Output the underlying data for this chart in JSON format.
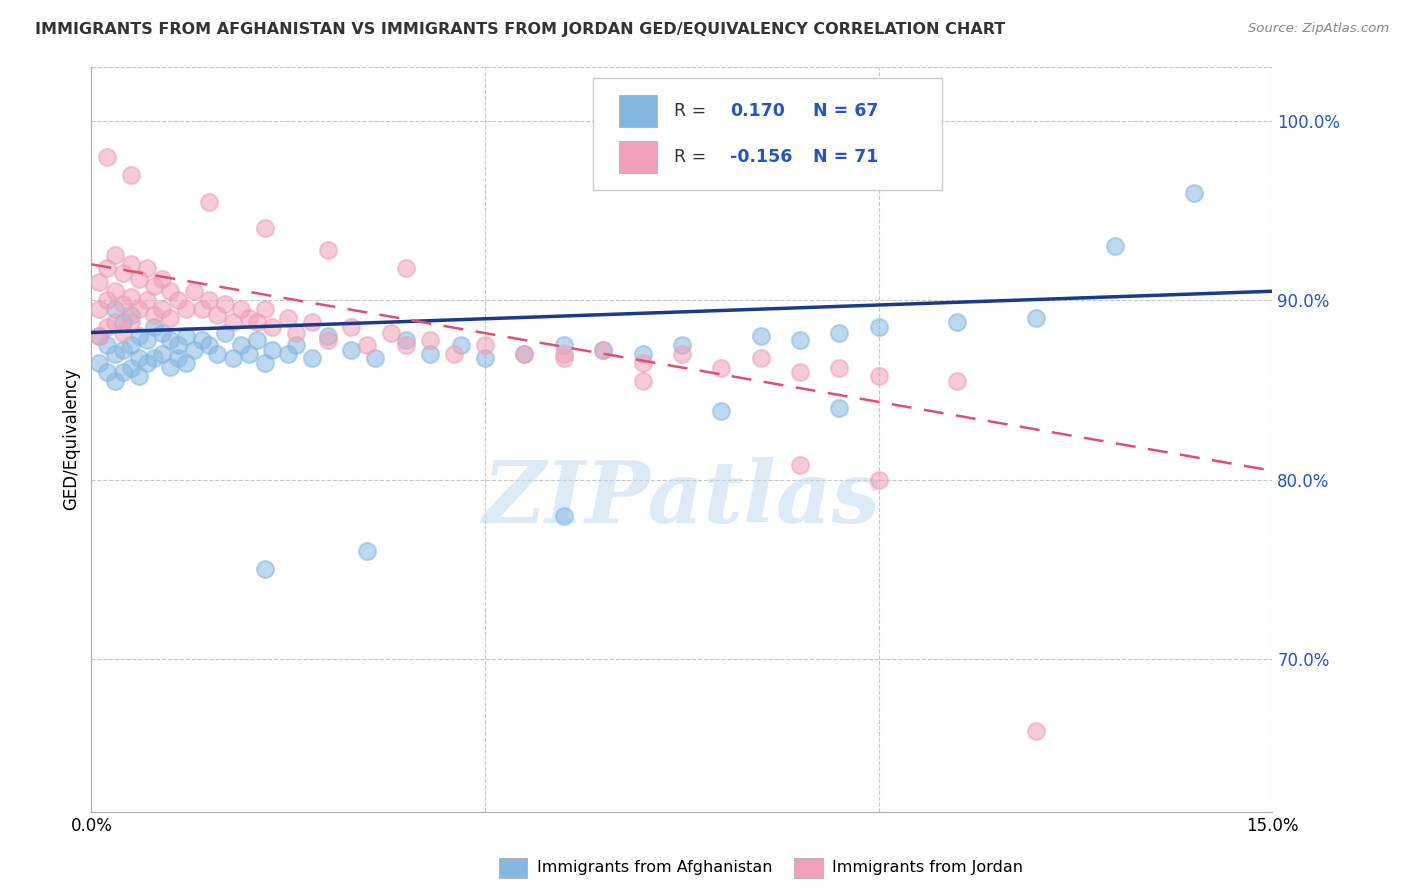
{
  "title": "IMMIGRANTS FROM AFGHANISTAN VS IMMIGRANTS FROM JORDAN GED/EQUIVALENCY CORRELATION CHART",
  "source_text": "Source: ZipAtlas.com",
  "ylabel": "GED/Equivalency",
  "xlim": [
    0.0,
    0.15
  ],
  "ylim": [
    0.615,
    1.03
  ],
  "x_ticks": [
    0.0,
    0.05,
    0.1,
    0.15
  ],
  "x_tick_labels": [
    "0.0%",
    "",
    "",
    "15.0%"
  ],
  "y_ticks": [
    0.7,
    0.8,
    0.9,
    1.0
  ],
  "y_tick_labels": [
    "70.0%",
    "80.0%",
    "90.0%",
    "100.0%"
  ],
  "r_afghanistan": 0.17,
  "n_afghanistan": 67,
  "r_jordan": -0.156,
  "n_jordan": 71,
  "color_afghanistan": "#85b8e0",
  "color_jordan": "#f0a0b8",
  "legend_label_afghanistan": "Immigrants from Afghanistan",
  "legend_label_jordan": "Immigrants from Jordan",
  "watermark": "ZIPatlas",
  "background_color": "#ffffff",
  "grid_color": "#c8c8c8",
  "afg_x": [
    0.001,
    0.001,
    0.002,
    0.002,
    0.003,
    0.003,
    0.003,
    0.004,
    0.004,
    0.004,
    0.005,
    0.005,
    0.005,
    0.006,
    0.006,
    0.006,
    0.007,
    0.007,
    0.008,
    0.008,
    0.009,
    0.009,
    0.01,
    0.01,
    0.011,
    0.011,
    0.012,
    0.012,
    0.013,
    0.014,
    0.015,
    0.016,
    0.017,
    0.018,
    0.019,
    0.02,
    0.021,
    0.022,
    0.023,
    0.025,
    0.026,
    0.028,
    0.03,
    0.033,
    0.036,
    0.04,
    0.043,
    0.047,
    0.05,
    0.055,
    0.06,
    0.065,
    0.07,
    0.075,
    0.085,
    0.09,
    0.095,
    0.1,
    0.11,
    0.12,
    0.022,
    0.035,
    0.06,
    0.08,
    0.095,
    0.13,
    0.14
  ],
  "afg_y": [
    0.88,
    0.865,
    0.875,
    0.86,
    0.895,
    0.87,
    0.855,
    0.888,
    0.872,
    0.86,
    0.892,
    0.875,
    0.862,
    0.88,
    0.868,
    0.858,
    0.878,
    0.865,
    0.885,
    0.868,
    0.882,
    0.87,
    0.878,
    0.863,
    0.875,
    0.868,
    0.88,
    0.865,
    0.872,
    0.878,
    0.875,
    0.87,
    0.882,
    0.868,
    0.875,
    0.87,
    0.878,
    0.865,
    0.872,
    0.87,
    0.875,
    0.868,
    0.88,
    0.872,
    0.868,
    0.878,
    0.87,
    0.875,
    0.868,
    0.87,
    0.875,
    0.872,
    0.87,
    0.875,
    0.88,
    0.878,
    0.882,
    0.885,
    0.888,
    0.89,
    0.75,
    0.76,
    0.78,
    0.838,
    0.84,
    0.93,
    0.96
  ],
  "jor_x": [
    0.001,
    0.001,
    0.001,
    0.002,
    0.002,
    0.002,
    0.003,
    0.003,
    0.003,
    0.004,
    0.004,
    0.004,
    0.005,
    0.005,
    0.005,
    0.006,
    0.006,
    0.007,
    0.007,
    0.008,
    0.008,
    0.009,
    0.009,
    0.01,
    0.01,
    0.011,
    0.012,
    0.013,
    0.014,
    0.015,
    0.016,
    0.017,
    0.018,
    0.019,
    0.02,
    0.021,
    0.022,
    0.023,
    0.025,
    0.026,
    0.028,
    0.03,
    0.033,
    0.035,
    0.038,
    0.04,
    0.043,
    0.046,
    0.05,
    0.055,
    0.06,
    0.065,
    0.07,
    0.075,
    0.08,
    0.085,
    0.09,
    0.095,
    0.1,
    0.11,
    0.002,
    0.005,
    0.015,
    0.022,
    0.03,
    0.04,
    0.06,
    0.07,
    0.09,
    0.1,
    0.12
  ],
  "jor_y": [
    0.91,
    0.895,
    0.88,
    0.918,
    0.9,
    0.885,
    0.925,
    0.905,
    0.888,
    0.915,
    0.898,
    0.882,
    0.92,
    0.902,
    0.888,
    0.912,
    0.895,
    0.918,
    0.9,
    0.908,
    0.892,
    0.912,
    0.895,
    0.905,
    0.89,
    0.9,
    0.895,
    0.905,
    0.895,
    0.9,
    0.892,
    0.898,
    0.888,
    0.895,
    0.89,
    0.888,
    0.895,
    0.885,
    0.89,
    0.882,
    0.888,
    0.878,
    0.885,
    0.875,
    0.882,
    0.875,
    0.878,
    0.87,
    0.875,
    0.87,
    0.868,
    0.872,
    0.865,
    0.87,
    0.862,
    0.868,
    0.86,
    0.862,
    0.858,
    0.855,
    0.98,
    0.97,
    0.955,
    0.94,
    0.928,
    0.918,
    0.87,
    0.855,
    0.808,
    0.8,
    0.66
  ]
}
